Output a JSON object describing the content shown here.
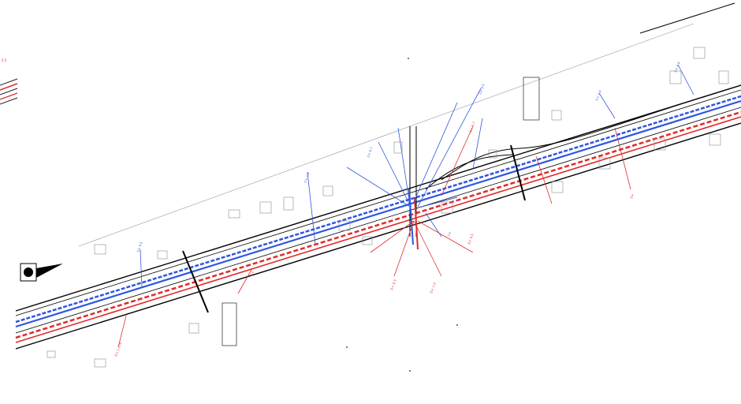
{
  "sheet": {
    "type": "road-utility-plan",
    "colors": {
      "background": "#ffffff",
      "road": "#000000",
      "blue_utility": "#2f56e0",
      "red_utility": "#e12a2a",
      "buildings": "#8a8a8a"
    },
    "icons": [
      "north-arrow-icon"
    ]
  },
  "annotations": {
    "left_red": "0.5",
    "center_blue": "U+",
    "center_red": "D+",
    "right_red": "D+"
  }
}
